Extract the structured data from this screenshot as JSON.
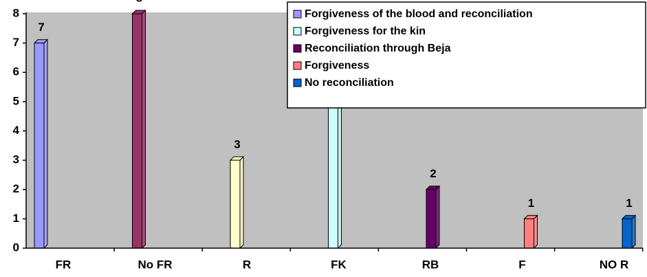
{
  "chart_data": {
    "type": "bar",
    "categories": [
      "FR",
      "No FR",
      "R",
      "FK",
      "RB",
      "F",
      "NO R"
    ],
    "values": [
      7,
      8,
      3,
      6,
      2,
      1,
      1
    ],
    "colors": [
      "#9999ff",
      "#993366",
      "#ffffcc",
      "#ccffff",
      "#660066",
      "#ff8080",
      "#0066cc"
    ],
    "ylim": [
      0,
      8
    ],
    "yticks": [
      0,
      1,
      2,
      3,
      4,
      5,
      6,
      7,
      8
    ],
    "grid": false,
    "legend": [
      {
        "name": "Forgiveness of the blood and reconciliation",
        "color": "#9999ff"
      },
      {
        "name": "Forgiveness for the kin",
        "color": "#ccffff"
      },
      {
        "name": "Reconciliation through Beja",
        "color": "#660066"
      },
      {
        "name": "Forgiveness",
        "color": "#ff8080"
      },
      {
        "name": "No reconciliation",
        "color": "#0066cc"
      }
    ],
    "legend_position": "upper right"
  }
}
